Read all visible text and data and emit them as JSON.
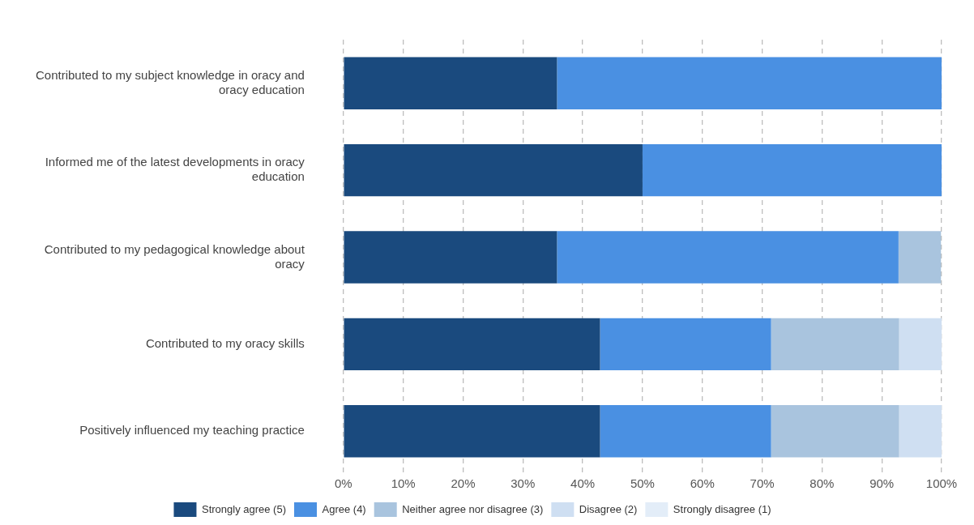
{
  "chart_data": {
    "type": "bar",
    "orientation": "horizontal",
    "stacked": true,
    "categories": [
      "Contributed to my subject knowledge in oracy and oracy education",
      "Informed me of the latest developments in oracy education",
      "Contributed to my pedagogical knowledge about oracy",
      "Contributed to my oracy skills",
      "Positively influenced my teaching practice"
    ],
    "series": [
      {
        "name": "Strongly agree (5)",
        "color": "#1a4a7e",
        "values": [
          35.7,
          50,
          35.7,
          42.9,
          42.9
        ]
      },
      {
        "name": "Agree (4)",
        "color": "#4a90e2",
        "values": [
          64.3,
          50,
          57.1,
          28.6,
          28.6
        ]
      },
      {
        "name": "Neither agree nor disagree (3)",
        "color": "#a9c4de",
        "values": [
          0,
          0,
          7.1,
          21.4,
          21.4
        ]
      },
      {
        "name": "Disagree (2)",
        "color": "#cfdff2",
        "values": [
          0,
          0,
          0,
          7.1,
          7.1
        ]
      },
      {
        "name": "Strongly disagree (1)",
        "color": "#e3edf8",
        "values": [
          0,
          0,
          0,
          0,
          0
        ]
      }
    ],
    "xlim": [
      0,
      100
    ],
    "xticks": [
      {
        "value": 0,
        "label": "0%"
      },
      {
        "value": 10,
        "label": "10%"
      },
      {
        "value": 20,
        "label": "20%"
      },
      {
        "value": 30,
        "label": "30%"
      },
      {
        "value": 40,
        "label": "40%"
      },
      {
        "value": 50,
        "label": "50%"
      },
      {
        "value": 60,
        "label": "60%"
      },
      {
        "value": 70,
        "label": "70%"
      },
      {
        "value": 80,
        "label": "80%"
      },
      {
        "value": 90,
        "label": "90%"
      },
      {
        "value": 100,
        "label": "100%"
      }
    ],
    "grid": "x",
    "legend": "bottom"
  }
}
